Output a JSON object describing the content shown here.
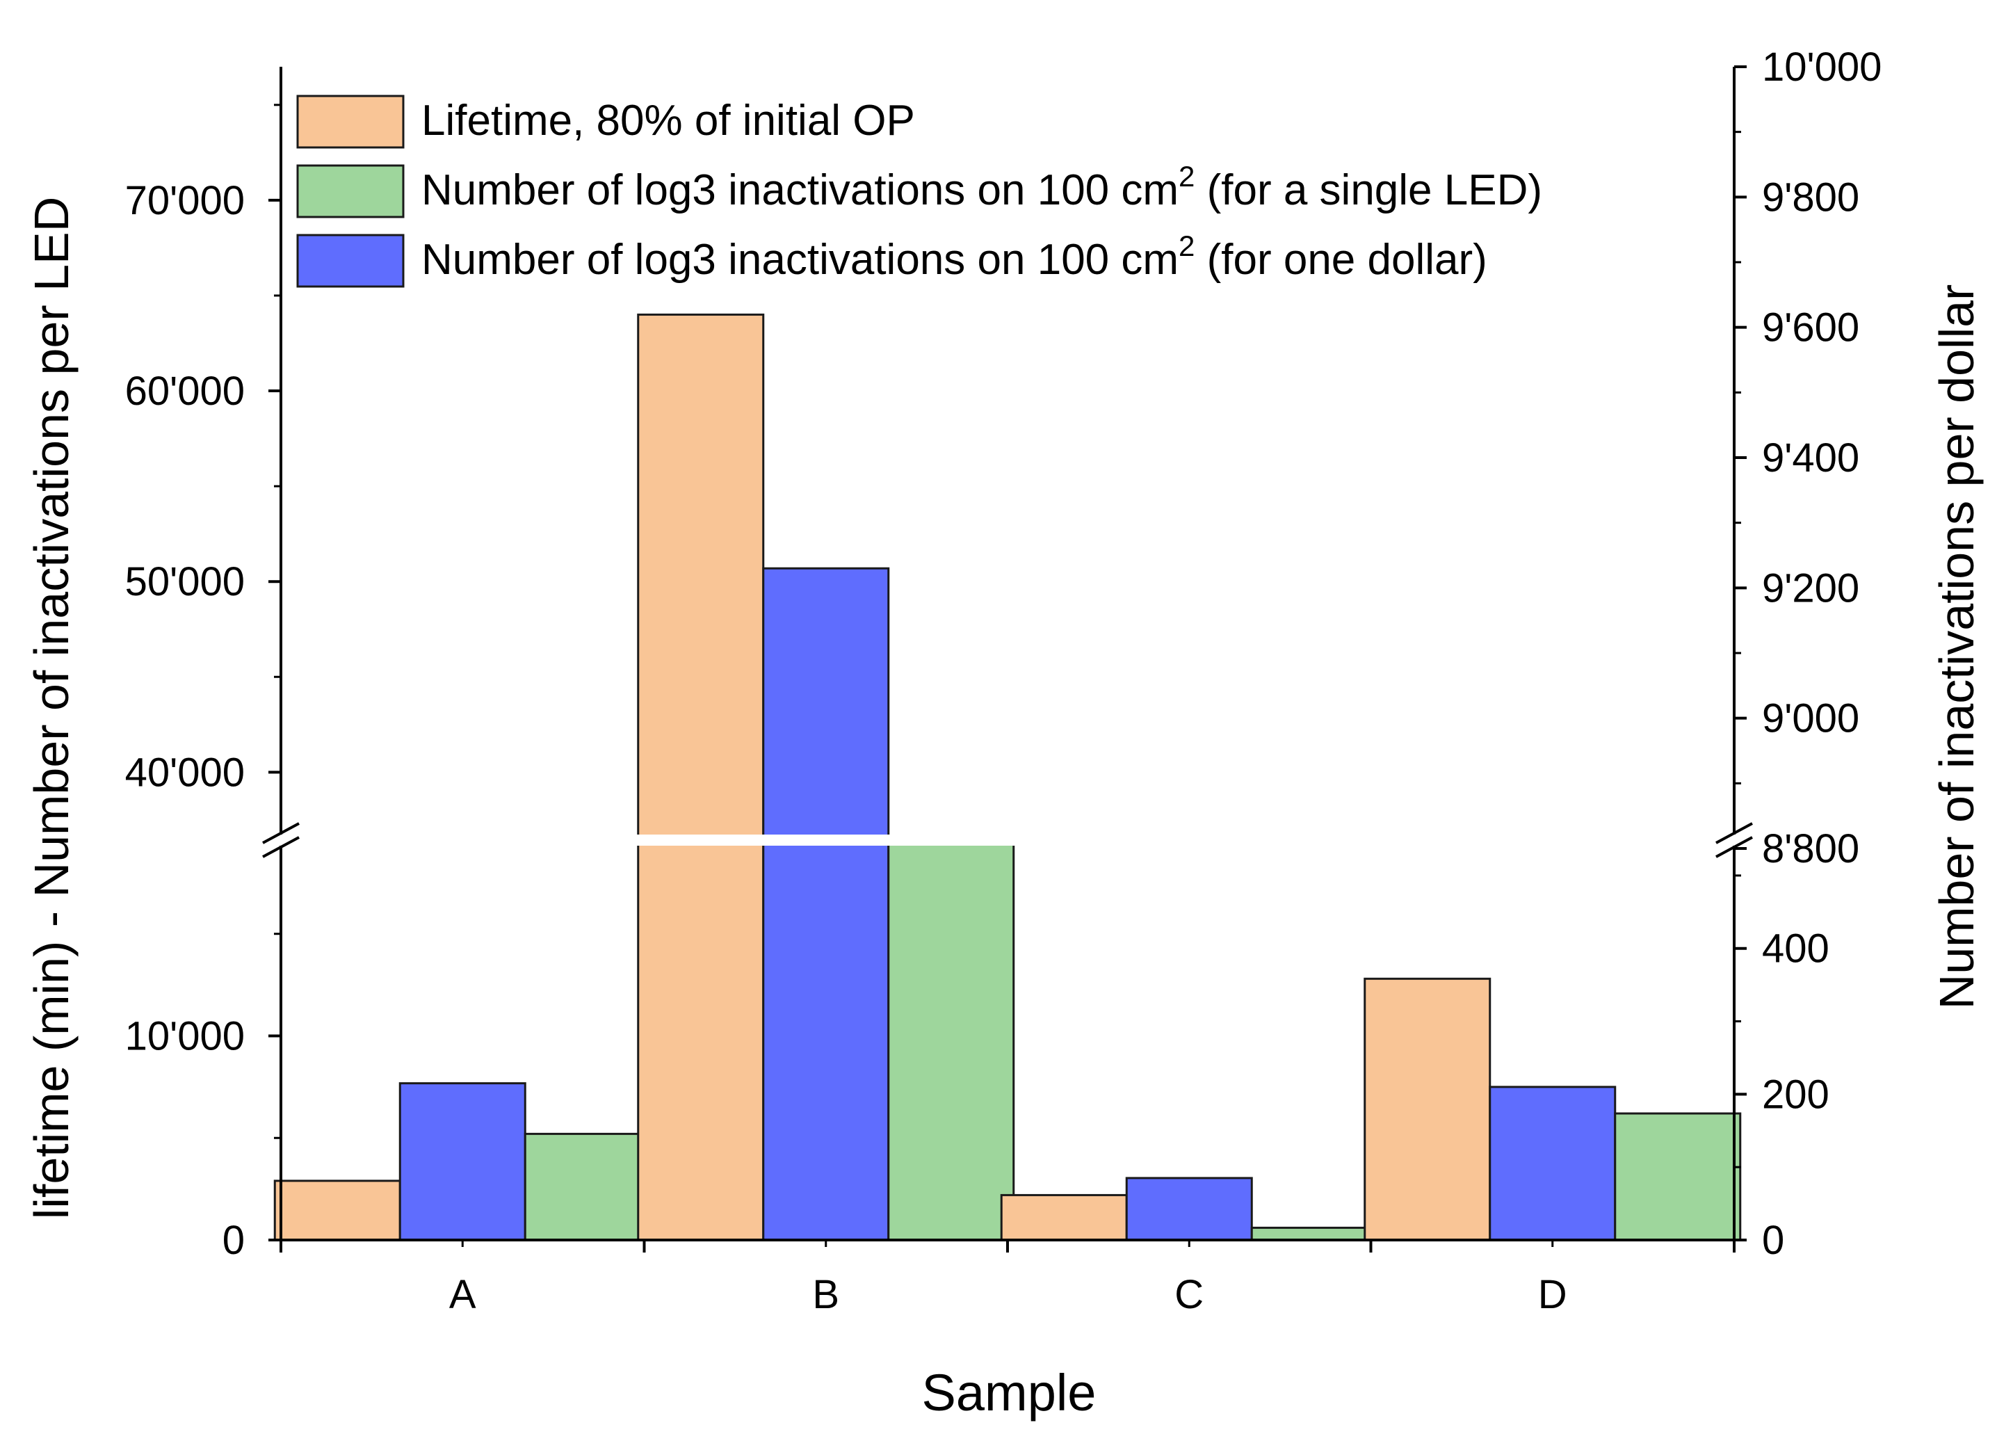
{
  "chart_data": {
    "type": "bar",
    "title": "",
    "xlabel": "Sample",
    "ylabel_left": "lifetime (min) - Number of inactivations per LED",
    "ylabel_right": "Number of inactivations per dollar",
    "categories": [
      "A",
      "B",
      "C",
      "D"
    ],
    "series": [
      {
        "name": "Lifetime, 80% of initial OP",
        "axis": "left",
        "color": "#f9c596",
        "values": [
          2900,
          64000,
          2200,
          12800
        ]
      },
      {
        "name": "Number of log3 inactivations on 100 cm² (for one dollar)",
        "axis": "right",
        "color": "#5f6dfe",
        "values": [
          215,
          9230,
          85,
          210
        ]
      },
      {
        "name": "Number of log3 inactivations on 100 cm² (for a single LED)",
        "axis": "left",
        "color": "#9ed69c",
        "values": [
          5200,
          36500,
          600,
          6200
        ]
      }
    ],
    "legend": {
      "position": "top-left",
      "entries": [
        {
          "series": 0,
          "text": "Lifetime, 80% of initial OP",
          "sup": "",
          "suffix": ""
        },
        {
          "series": 2,
          "text": "Number of log3 inactivations on 100 cm",
          "sup": "2",
          "suffix": "  (for a single LED)"
        },
        {
          "series": 1,
          "text": "Number of log3 inactivations on 100 cm",
          "sup": "2",
          "suffix": " (for one dollar)"
        }
      ]
    },
    "left_axis": {
      "break": [
        20000,
        36000
      ],
      "lower_range": [
        0,
        20000
      ],
      "upper_range": [
        36000,
        77000
      ],
      "ticks": [
        0,
        10000,
        40000,
        50000,
        60000,
        70000
      ],
      "tick_labels": [
        "0",
        "10'000",
        "40'000",
        "50'000",
        "60'000",
        "70'000"
      ]
    },
    "right_axis": {
      "break": [
        560,
        8800
      ],
      "lower_range": [
        0,
        560
      ],
      "upper_range": [
        8800,
        10000
      ],
      "ticks": [
        0,
        200,
        400,
        8800,
        9000,
        9200,
        9400,
        9600,
        9800,
        10000
      ],
      "tick_labels": [
        "0",
        "200",
        "400",
        "8'800",
        "9'000",
        "9'200",
        "9'400",
        "9'600",
        "9'800",
        "10'000"
      ]
    }
  }
}
